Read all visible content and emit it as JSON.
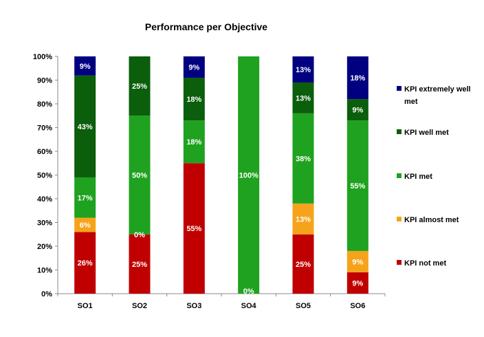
{
  "chart_data": {
    "type": "bar",
    "stacked": true,
    "title": "Performance per Objective",
    "xlabel": "",
    "ylabel": "",
    "ylim": [
      0,
      100
    ],
    "y_ticks": [
      "0%",
      "10%",
      "20%",
      "30%",
      "40%",
      "50%",
      "60%",
      "70%",
      "80%",
      "90%",
      "100%"
    ],
    "grid": false,
    "legend_position": "right",
    "categories": [
      "SO1",
      "SO2",
      "SO3",
      "SO4",
      "SO5",
      "SO6"
    ],
    "series": [
      {
        "name": "KPI not met",
        "color": "#c00000",
        "values": [
          26,
          25,
          55,
          0,
          25,
          9
        ],
        "labels": [
          "26%",
          "25%",
          "55%",
          "",
          "25%",
          "9%"
        ]
      },
      {
        "name": "KPI almost met",
        "color": "#f5a31a",
        "values": [
          6,
          0,
          0,
          0,
          13,
          9
        ],
        "labels": [
          "6%",
          "0%",
          "",
          "0%",
          "13%",
          "9%"
        ]
      },
      {
        "name": "KPI met",
        "color": "#1fa21f",
        "values": [
          17,
          50,
          18,
          100,
          38,
          55
        ],
        "labels": [
          "17%",
          "50%",
          "18%",
          "100%",
          "38%",
          "55%"
        ]
      },
      {
        "name": "KPI well met",
        "color": "#0b5e0b",
        "values": [
          43,
          25,
          18,
          0,
          13,
          9
        ],
        "labels": [
          "43%",
          "25%",
          "18%",
          "",
          "13%",
          "9%"
        ]
      },
      {
        "name": "KPI extremely well met",
        "color": "#000080",
        "values": [
          9,
          0,
          9,
          0,
          13,
          18
        ],
        "labels": [
          "9%",
          "",
          "9%",
          "",
          "13%",
          "18%"
        ]
      }
    ]
  }
}
